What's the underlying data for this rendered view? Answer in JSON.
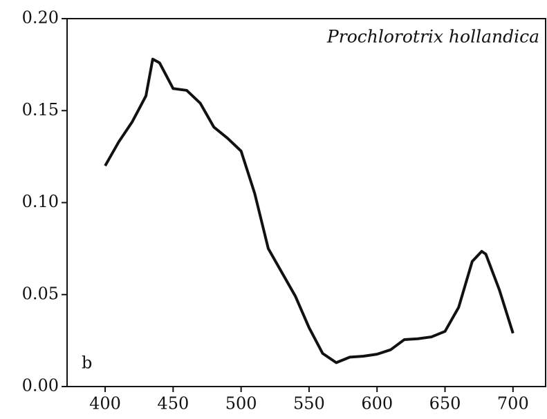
{
  "chart_data": {
    "type": "line",
    "annotations": [
      "Prochlorotrix hollandica",
      "b"
    ],
    "x": [
      400,
      410,
      420,
      430,
      435,
      440,
      445,
      450,
      460,
      470,
      480,
      490,
      500,
      510,
      520,
      530,
      540,
      550,
      560,
      570,
      580,
      590,
      600,
      610,
      620,
      630,
      640,
      650,
      660,
      670,
      677,
      680,
      690,
      700
    ],
    "series": [
      {
        "color": "#111111",
        "values": [
          0.12,
          0.133,
          0.144,
          0.158,
          0.178,
          0.176,
          0.169,
          0.162,
          0.161,
          0.154,
          0.141,
          0.135,
          0.128,
          0.105,
          0.075,
          0.062,
          0.049,
          0.032,
          0.018,
          0.013,
          0.016,
          0.0165,
          0.0176,
          0.02,
          0.0255,
          0.026,
          0.027,
          0.03,
          0.043,
          0.068,
          0.0735,
          0.072,
          0.0525,
          0.029
        ]
      }
    ],
    "xlim": [
      372,
      724
    ],
    "xticks": [
      400,
      450,
      500,
      550,
      600,
      650,
      700
    ],
    "ylim": [
      0,
      0.2
    ],
    "yticks": [
      {
        "value": 0,
        "label": "0.00"
      },
      0.05,
      {
        "value": 0.1,
        "label": "0.10"
      },
      0.15,
      {
        "value": 0.2,
        "label": "0.20"
      }
    ]
  }
}
